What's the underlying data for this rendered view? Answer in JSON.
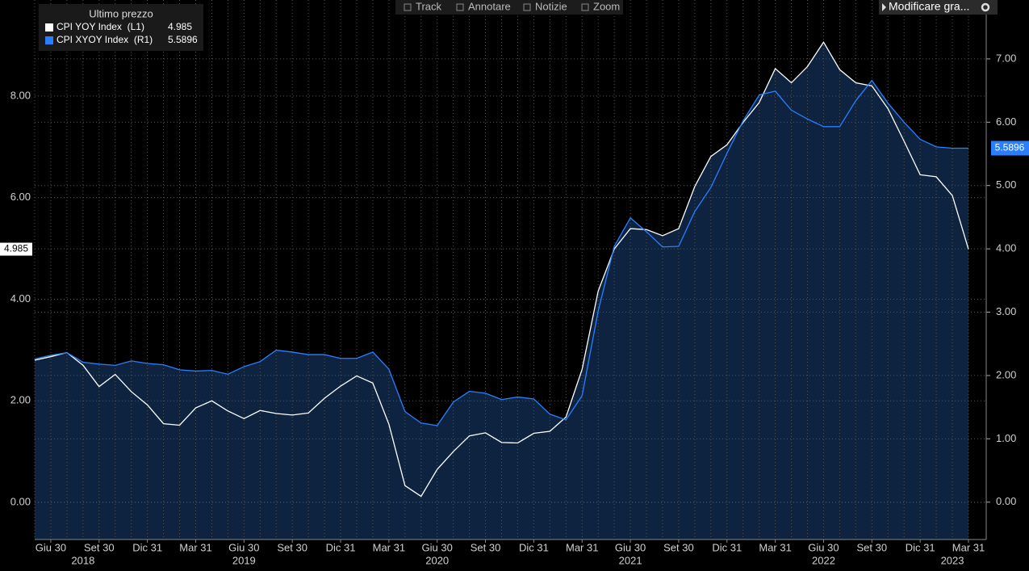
{
  "chart_data": {
    "type": "line",
    "toolbar": [
      "Track",
      "Annotare",
      "Notizie",
      "Zoom"
    ],
    "edit_button": "Modificare gra...",
    "legend_title": "Ultimo prezzo",
    "categories": [
      null,
      "Giu 30",
      null,
      null,
      "Set 30",
      null,
      null,
      "Dic 31",
      null,
      null,
      "Mar 31",
      null,
      null,
      "Giu 30",
      null,
      null,
      "Set 30",
      null,
      null,
      "Dic 31",
      null,
      null,
      "Mar 31",
      null,
      null,
      "Giu 30",
      null,
      null,
      "Set 30",
      null,
      null,
      "Dic 31",
      null,
      null,
      "Mar 31",
      null,
      null,
      "Giu 30",
      null,
      null,
      "Set 30",
      null,
      null,
      "Dic 31",
      null,
      null,
      "Mar 31",
      null,
      null,
      "Giu 30",
      null,
      null,
      "Set 30",
      null,
      null,
      "Dic 31",
      null,
      null,
      "Mar 31"
    ],
    "years": [
      null,
      null,
      null,
      "2018",
      null,
      null,
      null,
      null,
      null,
      null,
      null,
      null,
      null,
      "2019",
      null,
      null,
      null,
      null,
      null,
      null,
      null,
      null,
      null,
      null,
      null,
      "2020",
      null,
      null,
      null,
      null,
      null,
      null,
      null,
      null,
      null,
      null,
      null,
      "2021",
      null,
      null,
      null,
      null,
      null,
      null,
      null,
      null,
      null,
      null,
      null,
      "2022",
      null,
      null,
      null,
      null,
      null,
      null,
      null,
      "2023",
      null
    ],
    "series": [
      {
        "name": "CPI YOY Index  (L1)",
        "color": "#ffffff",
        "axis": "y",
        "values": [
          2.8,
          2.87,
          2.95,
          2.7,
          2.28,
          2.52,
          2.18,
          1.92,
          1.55,
          1.52,
          1.86,
          2.0,
          1.8,
          1.65,
          1.81,
          1.75,
          1.72,
          1.76,
          2.05,
          2.29,
          2.49,
          2.35,
          1.54,
          0.33,
          0.12,
          0.65,
          1.0,
          1.31,
          1.37,
          1.18,
          1.17,
          1.36,
          1.4,
          1.68,
          2.62,
          4.16,
          4.99,
          5.39,
          5.37,
          5.25,
          5.39,
          6.22,
          6.81,
          7.04,
          7.48,
          7.87,
          8.54,
          8.26,
          8.58,
          9.06,
          8.52,
          8.26,
          8.2,
          7.75,
          7.11,
          6.45,
          6.41,
          6.04,
          4.985
        ]
      },
      {
        "name": "CPI XYOY Index  (R1)",
        "color": "#2a7fff",
        "axis": "y2",
        "values": [
          2.26,
          2.32,
          2.36,
          2.21,
          2.18,
          2.16,
          2.23,
          2.19,
          2.17,
          2.09,
          2.07,
          2.08,
          2.02,
          2.14,
          2.22,
          2.4,
          2.37,
          2.33,
          2.33,
          2.27,
          2.27,
          2.37,
          2.1,
          1.43,
          1.25,
          1.21,
          1.58,
          1.75,
          1.72,
          1.62,
          1.66,
          1.63,
          1.39,
          1.3,
          1.68,
          3.02,
          4.04,
          4.49,
          4.27,
          4.03,
          4.04,
          4.59,
          4.97,
          5.51,
          6.02,
          6.43,
          6.49,
          6.19,
          6.05,
          5.93,
          5.93,
          6.34,
          6.66,
          6.3,
          6.0,
          5.73,
          5.61,
          5.59,
          5.5896
        ]
      }
    ],
    "area_color": "#0d2340",
    "ylim": [
      -0.73,
      9.89
    ],
    "yticks": [
      {
        "value": 0,
        "label": "0.00"
      },
      {
        "value": 2,
        "label": "2.00"
      },
      {
        "value": 4,
        "label": "4.00"
      },
      {
        "value": 6,
        "label": "6.00"
      },
      {
        "value": 8,
        "label": "8.00"
      }
    ],
    "y2lim": [
      -0.59,
      7.93
    ],
    "y2ticks": [
      {
        "value": 0,
        "label": "0.00"
      },
      {
        "value": 1,
        "label": "1.00"
      },
      {
        "value": 2,
        "label": "2.00"
      },
      {
        "value": 3,
        "label": "3.00"
      },
      {
        "value": 4,
        "label": "4.00"
      },
      {
        "value": 5,
        "label": "5.00"
      },
      {
        "value": 6,
        "label": "6.00"
      },
      {
        "value": 7,
        "label": "7.00"
      }
    ],
    "grid": true
  }
}
